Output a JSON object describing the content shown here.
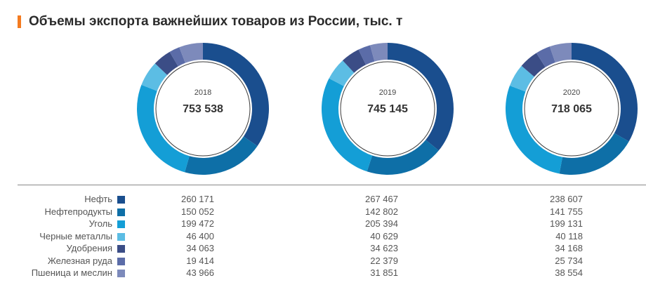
{
  "title": "Объемы экспорта важнейших товаров из России, тыс. т",
  "accent_color": "#f47b20",
  "chart_data": {
    "type": "donut",
    "title": "Объемы экспорта важнейших товаров из России, тыс. т",
    "categories": [
      "Нефть",
      "Нефтепродукты",
      "Уголь",
      "Черные металлы",
      "Удобрения",
      "Железная руда",
      "Пшеница и меслин"
    ],
    "colors": [
      "#1a4e8e",
      "#0e6fa7",
      "#149ed6",
      "#5cbde4",
      "#3b4d86",
      "#5b6ca8",
      "#7d8abb"
    ],
    "series": [
      {
        "year": "2018",
        "total": "753 538",
        "values": [
          260171,
          150052,
          199472,
          46400,
          34063,
          19414,
          43966
        ]
      },
      {
        "year": "2019",
        "total": "745 145",
        "values": [
          267467,
          142802,
          205394,
          40629,
          34623,
          22379,
          31851
        ]
      },
      {
        "year": "2020",
        "total": "718 065",
        "values": [
          238607,
          141755,
          199131,
          40118,
          34168,
          25734,
          38554
        ]
      }
    ]
  },
  "table": {
    "rows": [
      {
        "label": "Нефть",
        "values": [
          "260 171",
          "267 467",
          "238 607"
        ]
      },
      {
        "label": "Нефтепродукты",
        "values": [
          "150 052",
          "142 802",
          "141 755"
        ]
      },
      {
        "label": "Уголь",
        "values": [
          "199 472",
          "205 394",
          "199 131"
        ]
      },
      {
        "label": "Черные металлы",
        "values": [
          "46 400",
          "40 629",
          "40 118"
        ]
      },
      {
        "label": "Удобрения",
        "values": [
          "34 063",
          "34 623",
          "34 168"
        ]
      },
      {
        "label": "Железная руда",
        "values": [
          "19 414",
          "22 379",
          "25 734"
        ]
      },
      {
        "label": "Пшеница и меслин",
        "values": [
          "43 966",
          "31 851",
          "38 554"
        ]
      }
    ]
  }
}
